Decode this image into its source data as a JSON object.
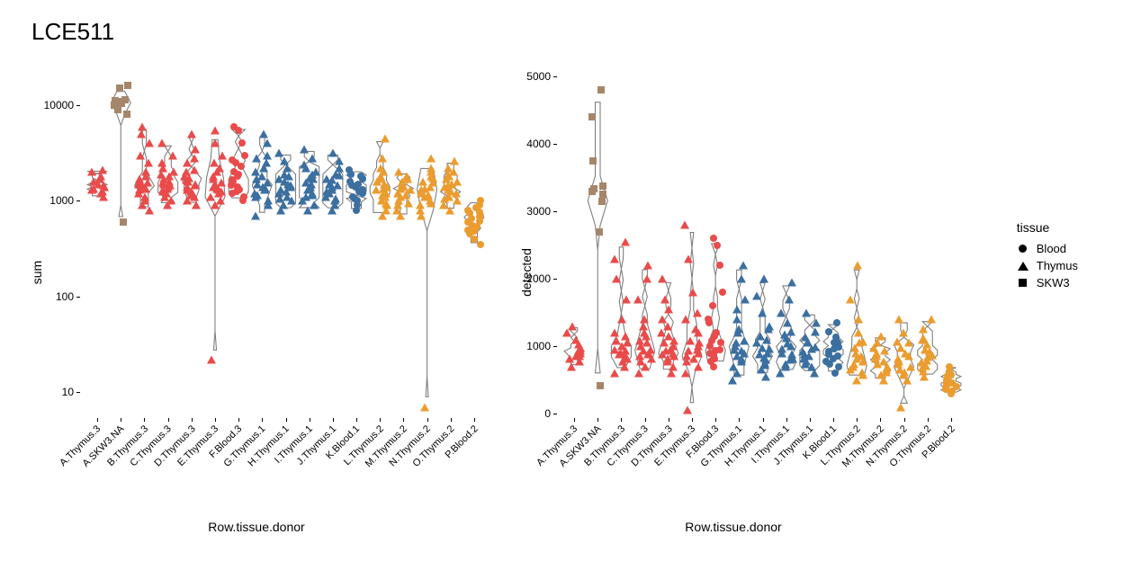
{
  "title": "LCE511",
  "xlabel": "Row.tissue.donor",
  "background": "#ffffff",
  "violin_stroke": "#808080",
  "point_size": 8,
  "colors": {
    "red": "#e94b4b",
    "brown": "#a6866a",
    "blue": "#3b6fa0",
    "orange": "#eb9c2f",
    "black": "#000000"
  },
  "legend": {
    "title": "tissue",
    "items": [
      {
        "label": "Blood",
        "shape": "circle"
      },
      {
        "label": "Thymus",
        "shape": "triangle"
      },
      {
        "label": "SKW3",
        "shape": "square"
      }
    ]
  },
  "categories": [
    {
      "name": "A.Thymus.3",
      "shape": "triangle",
      "color": "red"
    },
    {
      "name": "A.SKW3.NA",
      "shape": "square",
      "color": "brown"
    },
    {
      "name": "B.Thymus.3",
      "shape": "triangle",
      "color": "red"
    },
    {
      "name": "C.Thymus.3",
      "shape": "triangle",
      "color": "red"
    },
    {
      "name": "D.Thymus.3",
      "shape": "triangle",
      "color": "red"
    },
    {
      "name": "E.Thymus.3",
      "shape": "triangle",
      "color": "red"
    },
    {
      "name": "F.Blood.3",
      "shape": "circle",
      "color": "red"
    },
    {
      "name": "G.Thymus.1",
      "shape": "triangle",
      "color": "blue"
    },
    {
      "name": "H.Thymus.1",
      "shape": "triangle",
      "color": "blue"
    },
    {
      "name": "I.Thymus.1",
      "shape": "triangle",
      "color": "blue"
    },
    {
      "name": "J.Thymus.1",
      "shape": "triangle",
      "color": "blue"
    },
    {
      "name": "K.Blood.1",
      "shape": "circle",
      "color": "blue"
    },
    {
      "name": "L.Thymus.2",
      "shape": "triangle",
      "color": "orange"
    },
    {
      "name": "M.Thymus.2",
      "shape": "triangle",
      "color": "orange"
    },
    {
      "name": "N.Thymus.2",
      "shape": "triangle",
      "color": "orange"
    },
    {
      "name": "O.Thymus.2",
      "shape": "triangle",
      "color": "orange"
    },
    {
      "name": "P.Blood.2",
      "shape": "circle",
      "color": "orange"
    }
  ],
  "panels": [
    {
      "ylabel": "sum",
      "scale": "log",
      "ylim": [
        6,
        20000
      ],
      "yticks": [
        10,
        100,
        1000,
        10000
      ],
      "series": {
        "A.Thymus.3": [
          1200,
          1300,
          1350,
          1400,
          1450,
          1500,
          1600,
          1700,
          1800,
          2000,
          2100,
          1100,
          1250
        ],
        "A.SKW3.NA": [
          600,
          8000,
          9000,
          10000,
          10500,
          11000,
          11500,
          15000,
          16000,
          11200
        ],
        "B.Thymus.3": [
          800,
          1000,
          1100,
          1200,
          1300,
          1400,
          1500,
          1600,
          1800,
          2000,
          2500,
          3000,
          4000,
          5000,
          6000,
          900,
          1350,
          1450,
          1550,
          1700
        ],
        "C.Thymus.3": [
          900,
          1000,
          1100,
          1200,
          1300,
          1400,
          1500,
          1600,
          1800,
          2000,
          2500,
          3000,
          4000,
          1250,
          1350,
          1450,
          1550,
          1700,
          1900,
          2200
        ],
        "D.Thymus.3": [
          900,
          1000,
          1100,
          1200,
          1300,
          1400,
          1500,
          1600,
          1800,
          2000,
          2500,
          3500,
          5000,
          1150,
          1250,
          1450,
          1650,
          1750,
          2100,
          2800
        ],
        "E.Thymus.3": [
          22,
          900,
          1000,
          1100,
          1200,
          1300,
          1400,
          1500,
          1800,
          2000,
          2500,
          3000,
          4000,
          5500,
          1250,
          1350,
          1550,
          1700,
          2200
        ],
        "F.Blood.3": [
          1000,
          1100,
          1200,
          1300,
          1400,
          1500,
          1600,
          1800,
          2000,
          2500,
          3000,
          4000,
          5500,
          6000,
          1250,
          1450,
          1650,
          1900,
          2300,
          2700
        ],
        "G.Thymus.1": [
          700,
          900,
          1000,
          1100,
          1200,
          1300,
          1400,
          1500,
          1800,
          2000,
          2500,
          3000,
          4000,
          5000,
          1150,
          1350,
          1550,
          1700,
          2200,
          2800
        ],
        "H.Thymus.1": [
          800,
          900,
          1000,
          1100,
          1200,
          1300,
          1400,
          1500,
          1700,
          1900,
          2200,
          2600,
          3200,
          1050,
          1250,
          1450,
          1600,
          1800
        ],
        "I.Thymus.1": [
          800,
          900,
          1000,
          1100,
          1200,
          1300,
          1400,
          1500,
          1700,
          1900,
          2200,
          2800,
          3500,
          1150,
          1350,
          1550,
          1750,
          2000,
          2400
        ],
        "J.Thymus.1": [
          800,
          900,
          1000,
          1100,
          1200,
          1300,
          1400,
          1500,
          1700,
          1900,
          2200,
          2600,
          3200,
          1050,
          1250,
          1450,
          1650,
          1850
        ],
        "K.Blood.1": [
          800,
          900,
          1000,
          1100,
          1200,
          1300,
          1400,
          1500,
          1700,
          1900,
          2100,
          1050,
          1250,
          1450,
          1600,
          1800
        ],
        "L.Thymus.2": [
          700,
          800,
          900,
          1000,
          1100,
          1200,
          1300,
          1400,
          1600,
          1800,
          2200,
          2800,
          4500,
          950,
          1150,
          1350,
          1500,
          1700,
          2000
        ],
        "M.Thymus.2": [
          700,
          800,
          900,
          1000,
          1100,
          1200,
          1300,
          1400,
          1600,
          1800,
          2000,
          950,
          1150,
          1350,
          1500,
          1700
        ],
        "N.Thymus.2": [
          7,
          700,
          800,
          900,
          1000,
          1100,
          1200,
          1300,
          1400,
          1600,
          1800,
          2200,
          2800,
          950,
          1150,
          1350,
          1550,
          1750,
          2000
        ],
        "O.Thymus.2": [
          800,
          900,
          1000,
          1100,
          1200,
          1300,
          1400,
          1500,
          1700,
          1900,
          2200,
          2600,
          1050,
          1250,
          1450,
          1600,
          1800,
          2000
        ],
        "P.Blood.2": [
          350,
          400,
          450,
          500,
          550,
          600,
          650,
          700,
          750,
          800,
          900,
          1000,
          480,
          540,
          620,
          680,
          760,
          850
        ]
      }
    },
    {
      "ylabel": "detected",
      "scale": "linear",
      "ylim": [
        0,
        5000
      ],
      "yticks": [
        0,
        1000,
        2000,
        3000,
        4000,
        5000
      ],
      "series": {
        "A.Thymus.3": [
          700,
          780,
          820,
          860,
          900,
          940,
          980,
          1030,
          1100,
          1200,
          1300,
          850,
          930
        ],
        "A.SKW3.NA": [
          420,
          2700,
          3150,
          3250,
          3300,
          3330,
          3370,
          3750,
          4400,
          4800
        ],
        "B.Thymus.3": [
          600,
          700,
          780,
          850,
          900,
          950,
          1000,
          1080,
          1200,
          1400,
          1700,
          2000,
          2300,
          2550,
          820,
          880,
          940,
          1050,
          1150
        ],
        "C.Thymus.3": [
          600,
          700,
          780,
          850,
          900,
          950,
          1000,
          1080,
          1200,
          1400,
          1700,
          2000,
          2200,
          820,
          880,
          940,
          1050,
          1150,
          1300
        ],
        "D.Thymus.3": [
          600,
          700,
          780,
          850,
          900,
          950,
          1000,
          1080,
          1200,
          1400,
          1700,
          2000,
          820,
          880,
          940,
          1050,
          1150,
          1300,
          1550
        ],
        "E.Thymus.3": [
          50,
          600,
          700,
          780,
          850,
          900,
          950,
          1000,
          1080,
          1200,
          1400,
          1800,
          2300,
          2800,
          820,
          940,
          1050,
          1250,
          1500
        ],
        "F.Blood.3": [
          700,
          780,
          850,
          900,
          950,
          1000,
          1080,
          1200,
          1400,
          1800,
          2200,
          2500,
          2600,
          820,
          880,
          940,
          1050,
          1150,
          1350,
          1600
        ],
        "G.Thymus.1": [
          500,
          600,
          700,
          780,
          850,
          900,
          950,
          1000,
          1080,
          1200,
          1400,
          1700,
          2000,
          2200,
          820,
          940,
          1050,
          1250,
          1550
        ],
        "H.Thymus.1": [
          550,
          650,
          750,
          830,
          900,
          970,
          1050,
          1150,
          1300,
          1500,
          1750,
          2000,
          720,
          800,
          880,
          960,
          1100,
          1250
        ],
        "I.Thymus.1": [
          600,
          700,
          800,
          880,
          960,
          1040,
          1120,
          1220,
          1350,
          1500,
          1700,
          1950,
          740,
          820,
          900,
          1000,
          1180
        ],
        "J.Thymus.1": [
          600,
          700,
          780,
          850,
          920,
          990,
          1060,
          1130,
          1220,
          1350,
          1500,
          740,
          810,
          880,
          960,
          1050
        ],
        "K.Blood.1": [
          600,
          700,
          780,
          850,
          920,
          990,
          1060,
          1130,
          1220,
          1350,
          740,
          810,
          880,
          960,
          1050
        ],
        "L.Thymus.2": [
          500,
          580,
          660,
          740,
          820,
          900,
          980,
          1070,
          1200,
          1400,
          1700,
          2200,
          620,
          700,
          780,
          860,
          1050
        ],
        "M.Thymus.2": [
          500,
          580,
          660,
          740,
          820,
          900,
          980,
          1060,
          1150,
          620,
          700,
          780,
          860,
          940
        ],
        "N.Thymus.2": [
          100,
          500,
          580,
          660,
          740,
          820,
          900,
          980,
          1070,
          1200,
          1400,
          620,
          700,
          780,
          860,
          1050
        ],
        "O.Thymus.2": [
          550,
          630,
          710,
          790,
          870,
          950,
          1030,
          1120,
          1250,
          1400,
          680,
          760,
          840,
          920,
          1100
        ],
        "P.Blood.2": [
          300,
          340,
          380,
          420,
          460,
          500,
          540,
          580,
          630,
          700,
          360,
          400,
          440,
          490,
          560
        ]
      }
    }
  ]
}
